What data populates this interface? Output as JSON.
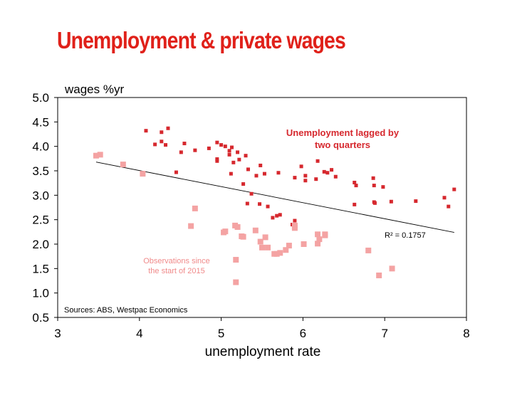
{
  "slide": {
    "title": "Unemployment & private wages"
  },
  "chart_data": {
    "type": "scatter",
    "title": "Unemployment & private wages",
    "xlabel": "unemployment rate",
    "ylabel": "wages %yr",
    "xlim": [
      3,
      8
    ],
    "ylim": [
      0.5,
      5.0
    ],
    "x_ticks": [
      "3",
      "4",
      "5",
      "6",
      "7",
      "8"
    ],
    "y_ticks": [
      "0.5",
      "1.0",
      "1.5",
      "2.0",
      "2.5",
      "3.0",
      "3.5",
      "4.0",
      "4.5",
      "5.0"
    ],
    "grid": false,
    "source": "Sources: ABS, Westpac Economics",
    "annotations": {
      "lagged": [
        "Unemployment lagged by",
        "two quarters"
      ],
      "recent": [
        "Observations since",
        "the start of 2015"
      ],
      "r_squared": "R² = 0.1757"
    },
    "colors": {
      "lagged": "#d6282e",
      "recent": "#f4a3a3",
      "title": "#e0211a",
      "trendline": "#000000"
    },
    "trendline": {
      "x": [
        3.47,
        7.85
      ],
      "y": [
        3.68,
        2.24
      ]
    },
    "series": [
      {
        "name": "Unemployment lagged by two quarters",
        "points": [
          [
            4.08,
            4.32
          ],
          [
            4.19,
            4.04
          ],
          [
            4.27,
            4.1
          ],
          [
            4.27,
            4.29
          ],
          [
            4.32,
            4.03
          ],
          [
            4.35,
            4.37
          ],
          [
            4.45,
            3.47
          ],
          [
            4.51,
            3.88
          ],
          [
            4.55,
            4.06
          ],
          [
            4.68,
            3.92
          ],
          [
            4.85,
            3.96
          ],
          [
            4.95,
            4.08
          ],
          [
            4.95,
            3.74
          ],
          [
            4.95,
            3.7
          ],
          [
            5.0,
            4.03
          ],
          [
            5.05,
            4.0
          ],
          [
            5.1,
            3.83
          ],
          [
            5.1,
            3.91
          ],
          [
            5.12,
            3.44
          ],
          [
            5.13,
            3.98
          ],
          [
            5.15,
            3.67
          ],
          [
            5.2,
            3.88
          ],
          [
            5.22,
            3.73
          ],
          [
            5.27,
            3.23
          ],
          [
            5.3,
            3.81
          ],
          [
            5.32,
            2.83
          ],
          [
            5.33,
            3.53
          ],
          [
            5.37,
            3.03
          ],
          [
            5.43,
            3.4
          ],
          [
            5.47,
            2.82
          ],
          [
            5.48,
            3.61
          ],
          [
            5.53,
            3.44
          ],
          [
            5.57,
            2.77
          ],
          [
            5.63,
            2.54
          ],
          [
            5.68,
            2.58
          ],
          [
            5.7,
            3.46
          ],
          [
            5.72,
            2.6
          ],
          [
            5.87,
            2.4
          ],
          [
            5.9,
            2.48
          ],
          [
            5.9,
            3.36
          ],
          [
            5.98,
            3.59
          ],
          [
            6.03,
            3.4
          ],
          [
            6.03,
            3.3
          ],
          [
            6.16,
            3.33
          ],
          [
            6.18,
            3.7
          ],
          [
            6.26,
            3.48
          ],
          [
            6.3,
            3.46
          ],
          [
            6.35,
            3.52
          ],
          [
            6.4,
            3.38
          ],
          [
            6.63,
            3.26
          ],
          [
            6.65,
            3.2
          ],
          [
            6.63,
            2.81
          ],
          [
            6.86,
            3.35
          ],
          [
            6.87,
            3.2
          ],
          [
            6.87,
            2.86
          ],
          [
            6.88,
            2.84
          ],
          [
            6.98,
            3.17
          ],
          [
            7.08,
            2.87
          ],
          [
            7.38,
            2.88
          ],
          [
            7.73,
            2.95
          ],
          [
            7.78,
            2.77
          ],
          [
            7.85,
            3.12
          ]
        ]
      },
      {
        "name": "Observations since the start of 2015",
        "points": [
          [
            3.47,
            3.81
          ],
          [
            3.52,
            3.83
          ],
          [
            3.8,
            3.63
          ],
          [
            4.04,
            3.44
          ],
          [
            4.63,
            2.37
          ],
          [
            4.68,
            2.73
          ],
          [
            5.03,
            2.24
          ],
          [
            5.05,
            2.26
          ],
          [
            5.17,
            2.38
          ],
          [
            5.2,
            2.35
          ],
          [
            5.18,
            1.68
          ],
          [
            5.18,
            1.22
          ],
          [
            5.25,
            2.16
          ],
          [
            5.27,
            2.15
          ],
          [
            5.42,
            2.28
          ],
          [
            5.48,
            2.05
          ],
          [
            5.5,
            1.93
          ],
          [
            5.54,
            2.14
          ],
          [
            5.57,
            1.93
          ],
          [
            5.65,
            1.8
          ],
          [
            5.68,
            1.8
          ],
          [
            5.72,
            1.82
          ],
          [
            5.79,
            1.88
          ],
          [
            5.83,
            1.97
          ],
          [
            5.9,
            2.33
          ],
          [
            5.9,
            2.38
          ],
          [
            6.01,
            2.0
          ],
          [
            6.18,
            2.01
          ],
          [
            6.18,
            2.2
          ],
          [
            6.2,
            2.1
          ],
          [
            6.27,
            2.2
          ],
          [
            6.27,
            2.18
          ],
          [
            6.8,
            1.87
          ],
          [
            6.93,
            1.36
          ],
          [
            7.09,
            1.5
          ]
        ]
      }
    ]
  }
}
